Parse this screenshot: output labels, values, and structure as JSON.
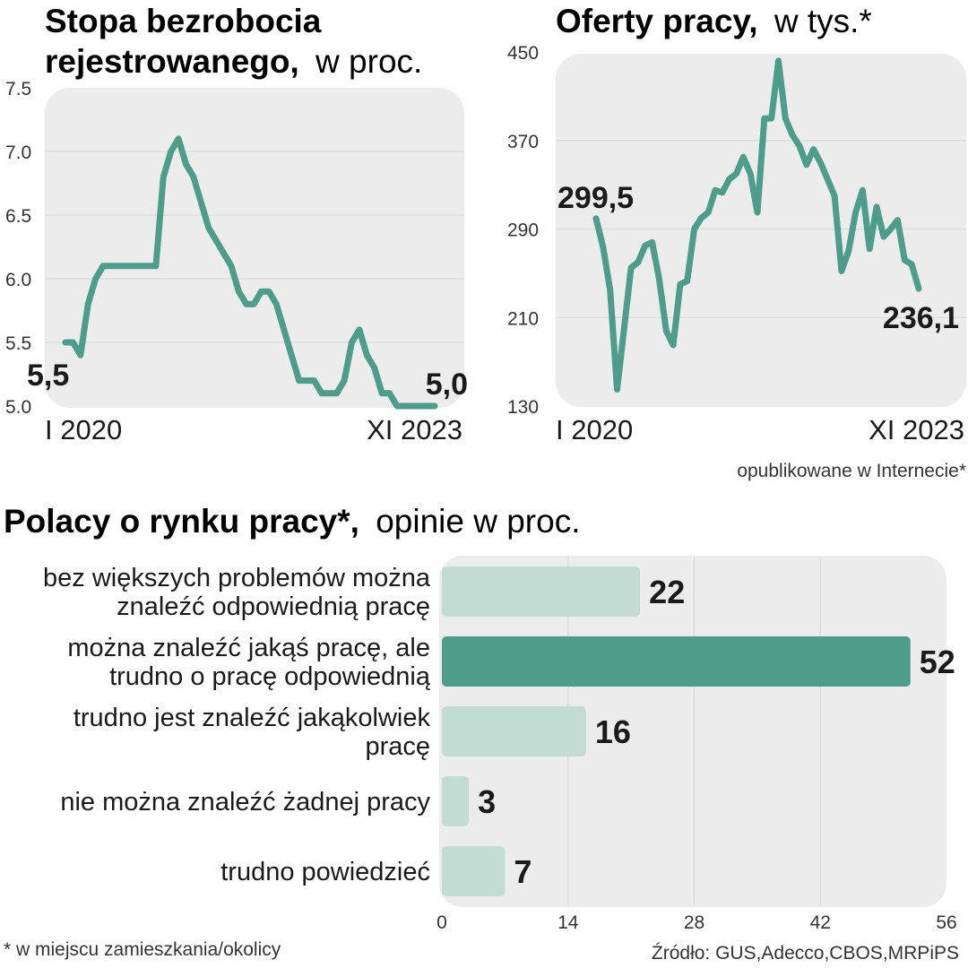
{
  "chart_data": [
    {
      "type": "line",
      "title": "Stopa bezrobocia rejestrowanego,",
      "title_line1": "Stopa bezrobocia",
      "title_line2": "rejestrowanego,",
      "title_unit": "w proc.",
      "ylim": [
        5.0,
        7.5
      ],
      "yticks": [
        "5.0",
        "5.5",
        "6.0",
        "6.5",
        "7.0",
        "7.5"
      ],
      "x_start_label": "I 2020",
      "x_end_label": "XI 2023",
      "start_callout": "5,5",
      "end_callout": "5,0",
      "line_color": "#4e9c8a",
      "values": [
        5.5,
        5.5,
        5.4,
        5.8,
        6.0,
        6.1,
        6.1,
        6.1,
        6.1,
        6.1,
        6.1,
        6.1,
        6.1,
        6.8,
        7.0,
        7.1,
        6.9,
        6.8,
        6.6,
        6.4,
        6.3,
        6.2,
        6.1,
        5.9,
        5.8,
        5.8,
        5.9,
        5.9,
        5.8,
        5.6,
        5.4,
        5.2,
        5.2,
        5.2,
        5.1,
        5.1,
        5.1,
        5.2,
        5.5,
        5.6,
        5.4,
        5.3,
        5.1,
        5.1,
        5.0,
        5.0,
        5.0,
        5.0,
        5.0,
        5.0
      ]
    },
    {
      "type": "line",
      "title": "Oferty pracy,",
      "title_unit": "w tys.*",
      "ylim": [
        130,
        450
      ],
      "yticks": [
        "130",
        "210",
        "290",
        "370",
        "450"
      ],
      "x_start_label": "I 2020",
      "x_end_label": "XI 2023",
      "start_callout": "299,5",
      "end_callout": "236,1",
      "footnote": "opublikowane  w Internecie*",
      "line_color": "#4e9c8a",
      "values": [
        299.5,
        274,
        235,
        145,
        200,
        255,
        260,
        275,
        278,
        245,
        198,
        185,
        240,
        243,
        290,
        300,
        305,
        325,
        323,
        335,
        340,
        355,
        340,
        305,
        390,
        390,
        442,
        390,
        375,
        365,
        348,
        362,
        350,
        335,
        320,
        252,
        270,
        305,
        325,
        272,
        310,
        283,
        290,
        298,
        262,
        258,
        236.1
      ]
    },
    {
      "type": "bar",
      "orientation": "horizontal",
      "title": "Polacy o rynku pracy*,",
      "title_unit": "opinie w proc.",
      "categories": [
        [
          "bez większych problemów można",
          "znaleźć odpowiednią pracę"
        ],
        [
          "można  znaleźć jakąś pracę, ale",
          "trudno o pracę odpowiednią"
        ],
        [
          "trudno jest znaleźć jakąkolwiek",
          "pracę"
        ],
        [
          "nie można znaleźć żadnej pracy"
        ],
        [
          "trudno powiedzieć"
        ]
      ],
      "values": [
        22,
        52,
        16,
        3,
        7
      ],
      "xlim": [
        0,
        56
      ],
      "xticks": [
        0,
        14,
        28,
        42,
        56
      ],
      "highlight_index": 1,
      "bar_color": "#c2dcd3",
      "highlight_color": "#4e9c8a"
    }
  ],
  "footer": {
    "left": "* w miejscu zamieszkania/okolicy",
    "right": "Źródło: GUS,Adecco,CBOS,MRPiPS"
  }
}
